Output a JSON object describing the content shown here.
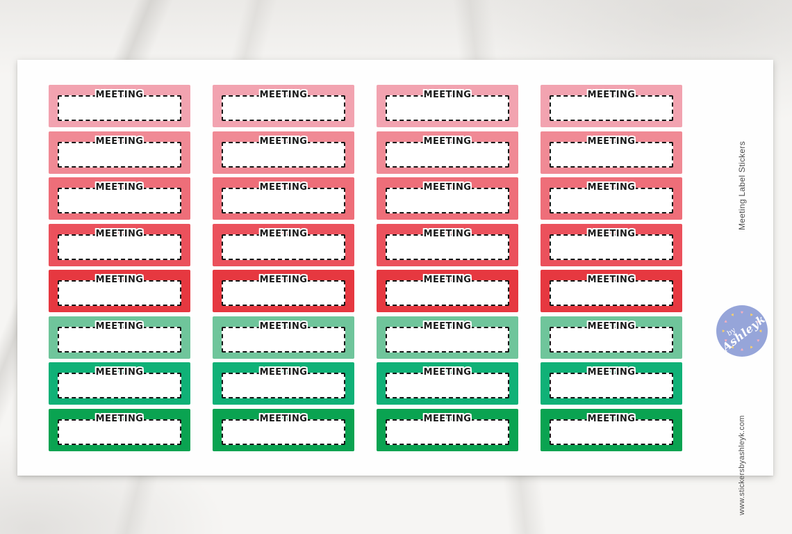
{
  "page": {
    "side_title": "Meeting Label Stickers",
    "website": "www.stickersbyashleyk.com"
  },
  "sheet": {
    "sticker_label": "MEETING",
    "columns": 4,
    "rows": 8
  },
  "sticker_rows": [
    {
      "name": "pink-light",
      "color": "#F2A3B0"
    },
    {
      "name": "pink",
      "color": "#F08A95"
    },
    {
      "name": "coral",
      "color": "#EE6E79"
    },
    {
      "name": "red-light",
      "color": "#EB515C"
    },
    {
      "name": "red",
      "color": "#E63840"
    },
    {
      "name": "green-soft",
      "color": "#6FC59B"
    },
    {
      "name": "green-jade",
      "color": "#10B177"
    },
    {
      "name": "green",
      "color": "#0AA351"
    }
  ],
  "logo": {
    "text_top": "by",
    "text_main": "Ashleyk",
    "badge_color": "#96A5D9",
    "heart_pink": "#F3AFC0",
    "heart_yellow": "#F6CF6E"
  },
  "colors": {
    "label_text": "#1A1A1A",
    "dash_border": "#151515",
    "side_text": "#4D4D4D",
    "sheet_bg": "#FEFEFE"
  }
}
